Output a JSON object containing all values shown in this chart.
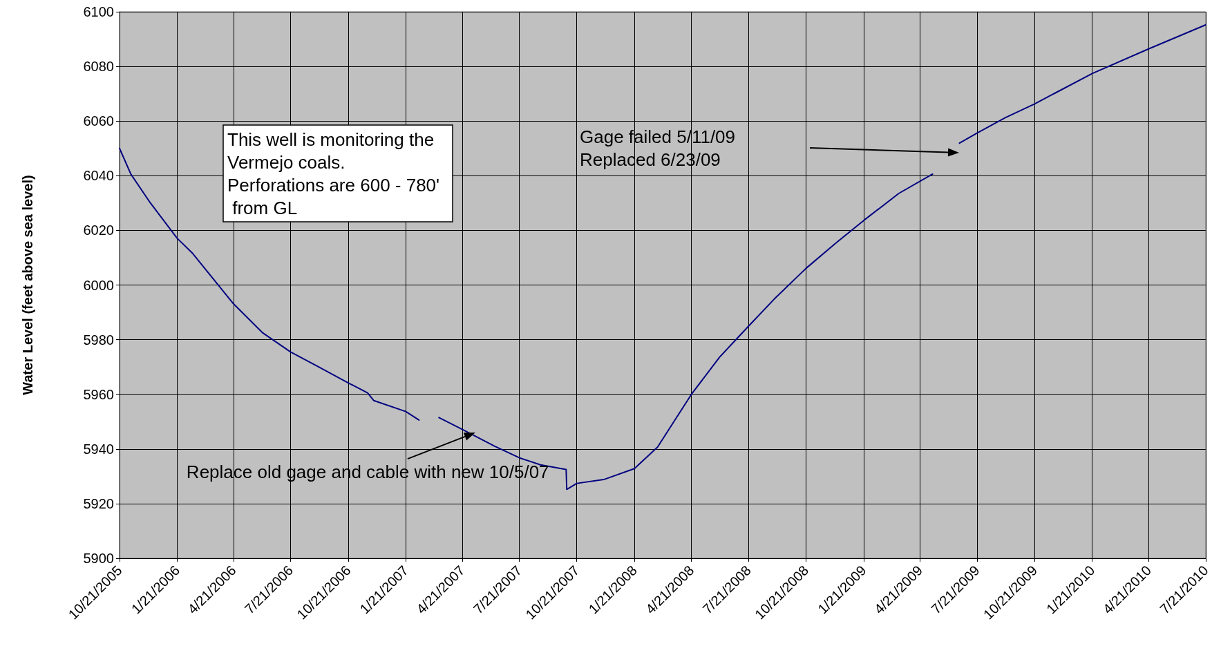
{
  "chart_data": {
    "type": "line",
    "ylabel": "Water Level (feet above sea level)",
    "x": [
      "2005-10-21",
      "2005-11-08",
      "2005-12-09",
      "2006-01-21",
      "2006-02-15",
      "2006-04-21",
      "2006-06-06",
      "2006-07-21",
      "2006-09-01",
      "2006-10-21",
      "2006-11-21",
      "2006-12-01",
      "2007-01-21",
      "2007-02-11",
      "2007-03-01",
      "2007-03-15",
      "2007-04-21",
      "2007-06-12",
      "2007-07-21",
      "2007-08-24",
      "2007-10-04",
      "2007-10-05",
      "2007-10-21",
      "2007-12-03",
      "2008-01-21",
      "2008-02-27",
      "2008-04-21",
      "2008-06-05",
      "2008-07-21",
      "2008-08-31",
      "2008-10-21",
      "2008-12-08",
      "2009-01-21",
      "2009-03-18",
      "2009-05-11",
      "2009-06-01",
      "2009-06-23",
      "2009-07-21",
      "2009-09-04",
      "2009-10-21",
      "2010-01-21",
      "2010-04-21",
      "2010-07-21"
    ],
    "series": [
      {
        "color": "#000080",
        "values": [
          6050,
          6040.6,
          6030.1,
          6017.1,
          6011.5,
          5993.1,
          5982.6,
          5975.5,
          5970.4,
          5964.2,
          5960.5,
          5957.7,
          5953.7,
          5950.6,
          null,
          5951.5,
          5947.2,
          5941,
          5936.8,
          5934.2,
          5932.5,
          5925.2,
          5927.4,
          5928.8,
          5932.8,
          5940.7,
          5960,
          5973.6,
          5984.9,
          5994.8,
          6006.1,
          6015.4,
          6023.6,
          6033.5,
          6040.6,
          null,
          6051.9,
          6055.6,
          6061.2,
          6066.3,
          6077.4,
          6086.4,
          6095.2
        ]
      }
    ],
    "xlim": [
      "2005-10-21",
      "2010-07-21"
    ],
    "xticks": [
      {
        "value": "2005-10-21",
        "label": "10/21/2005"
      },
      {
        "value": "2006-01-21",
        "label": "1/21/2006"
      },
      {
        "value": "2006-04-21",
        "label": "4/21/2006"
      },
      {
        "value": "2006-07-21",
        "label": "7/21/2006"
      },
      {
        "value": "2006-10-21",
        "label": "10/21/2006"
      },
      {
        "value": "2007-01-21",
        "label": "1/21/2007"
      },
      {
        "value": "2007-04-21",
        "label": "4/21/2007"
      },
      {
        "value": "2007-07-21",
        "label": "7/21/2007"
      },
      {
        "value": "2007-10-21",
        "label": "10/21/2007"
      },
      {
        "value": "2008-01-21",
        "label": "1/21/2008"
      },
      {
        "value": "2008-04-21",
        "label": "4/21/2008"
      },
      {
        "value": "2008-07-21",
        "label": "7/21/2008"
      },
      {
        "value": "2008-10-21",
        "label": "10/21/2008"
      },
      {
        "value": "2009-01-21",
        "label": "1/21/2009"
      },
      {
        "value": "2009-04-21",
        "label": "4/21/2009"
      },
      {
        "value": "2009-07-21",
        "label": "7/21/2009"
      },
      {
        "value": "2009-10-21",
        "label": "10/21/2009"
      },
      {
        "value": "2010-01-21",
        "label": "1/21/2010"
      },
      {
        "value": "2010-04-21",
        "label": "4/21/2010"
      },
      {
        "value": "2010-07-21",
        "label": "7/21/2010"
      }
    ],
    "ylim": [
      5900,
      6100
    ],
    "yticks": [
      5900,
      5920,
      5940,
      5960,
      5980,
      6000,
      6020,
      6040,
      6060,
      6080,
      6100
    ],
    "grid": true,
    "marker": "none",
    "line_style": "solid",
    "annotations": [
      "This well is monitoring the Vermejo coals. Perforations are 600 - 780' from GL",
      {
        "text": "Replace old gage and cable with new 10/5/07",
        "x": "2007-05-12",
        "y": 5946
      },
      "Gage failed 5/11/09\nReplaced 6/23/09"
    ]
  }
}
